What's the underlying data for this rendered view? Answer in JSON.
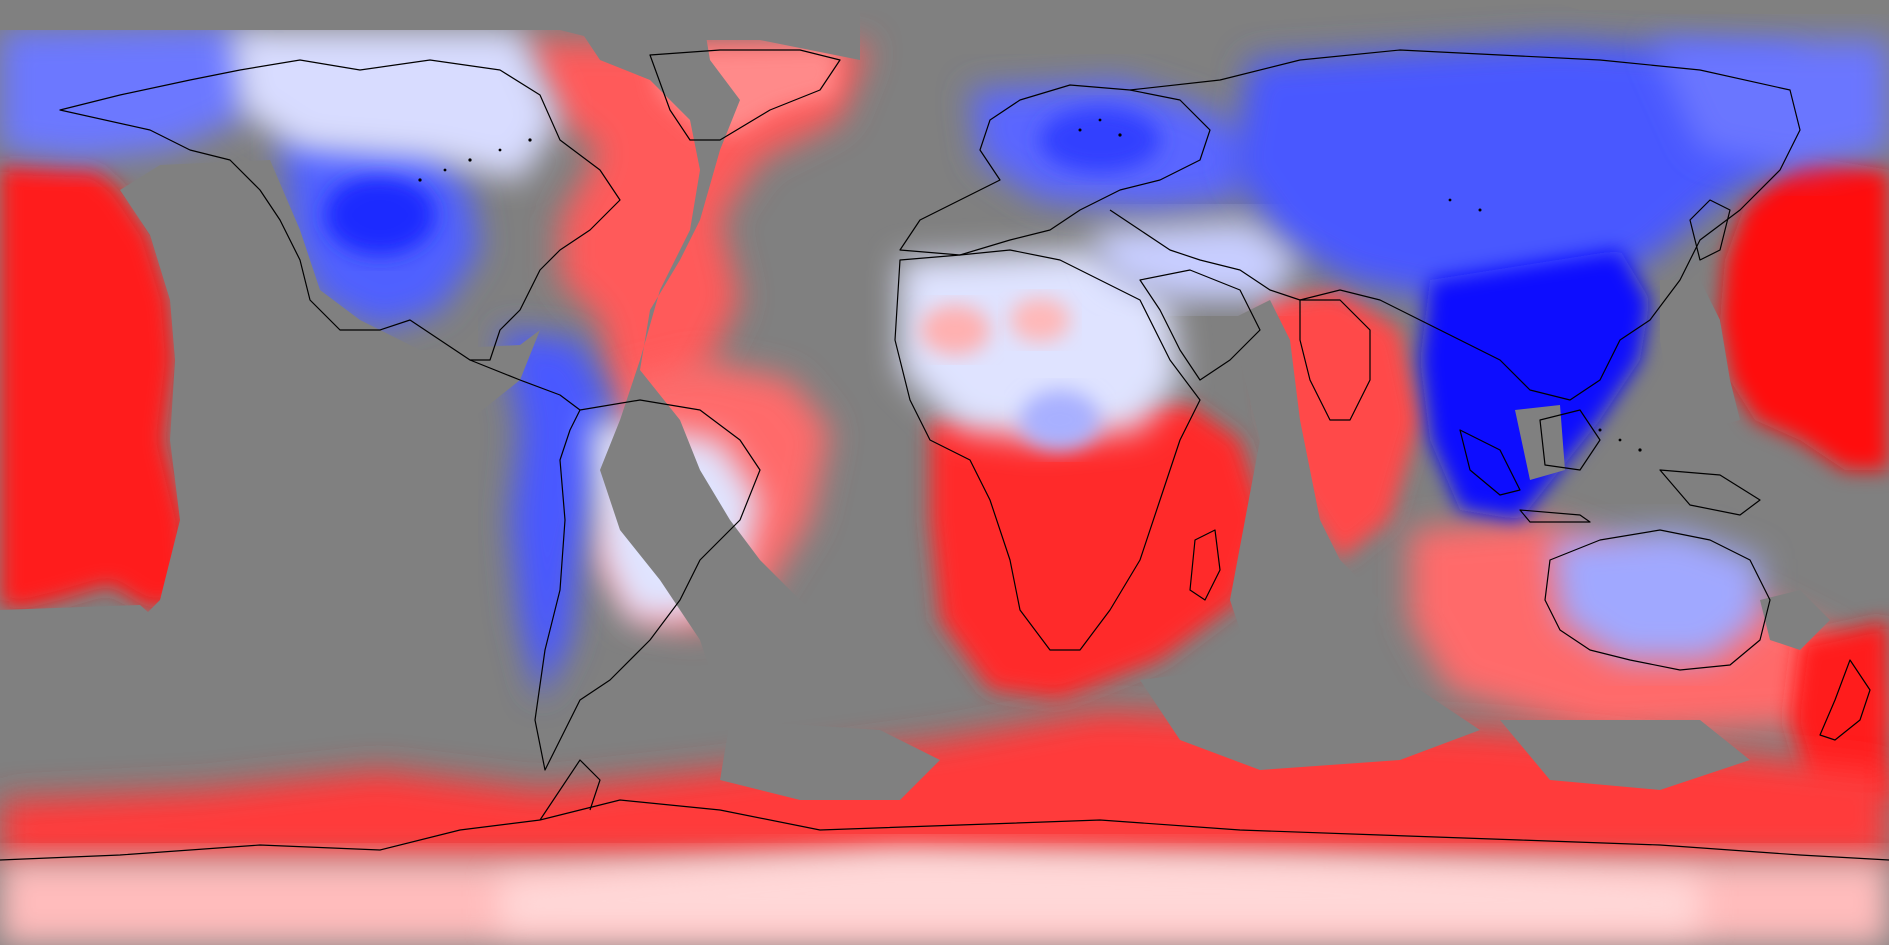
{
  "map": {
    "projection": "equirectangular",
    "extent": {
      "lon": [
        -180,
        180
      ],
      "lat": [
        -90,
        90
      ]
    },
    "colors": {
      "missing": "#808080",
      "coastline": "#000000",
      "warm_strong": "#ff0000",
      "warm_mid": "#ff8a8a",
      "warm_light": "#ffd4d4",
      "neutral": "#ffffff",
      "cool_light": "#d6dcff",
      "cool_mid": "#7a86ff",
      "cool_strong": "#0000ff"
    },
    "legend": null,
    "title": "",
    "subtitle": ""
  }
}
